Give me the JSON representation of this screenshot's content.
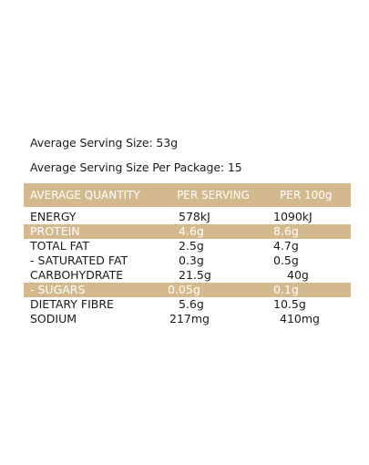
{
  "serving_info": {
    "serving_size": "Average Serving Size: 53g",
    "servings_per_package": "Average Serving Size Per Package: 15"
  },
  "table": {
    "headers": [
      "AVERAGE QUANTITY",
      "PER SERVING",
      "PER 100g"
    ],
    "rows": [
      {
        "label": "ENERGY",
        "per_serving": "578kJ",
        "per_100g": "1090kJ",
        "highlight": false
      },
      {
        "label": "PROTEIN",
        "per_serving": "4.6g",
        "per_100g": "8.6g",
        "highlight": true
      },
      {
        "label": "TOTAL FAT",
        "per_serving": "2.5g",
        "per_100g": "4.7g",
        "highlight": false
      },
      {
        "label": " - SATURATED FAT",
        "per_serving": "0.3g",
        "per_100g": "0.5g",
        "highlight": false
      },
      {
        "label": "CARBOHYDRATE",
        "per_serving": "21.5g",
        "per_100g": "40g",
        "highlight": false
      },
      {
        "label": " - SUGARS",
        "per_serving": "0.05g",
        "per_100g": "0.1g",
        "highlight": true
      },
      {
        "label": "DIETARY FIBRE",
        "per_serving": "5.6g",
        "per_100g": "10.5g",
        "highlight": false
      },
      {
        "label": "SODIUM",
        "per_serving": "217mg",
        "per_100g": "410mg",
        "highlight": false
      }
    ]
  },
  "colors": {
    "accent": "#d4b98e",
    "text": "#1a1a1a",
    "background": "#ffffff"
  }
}
